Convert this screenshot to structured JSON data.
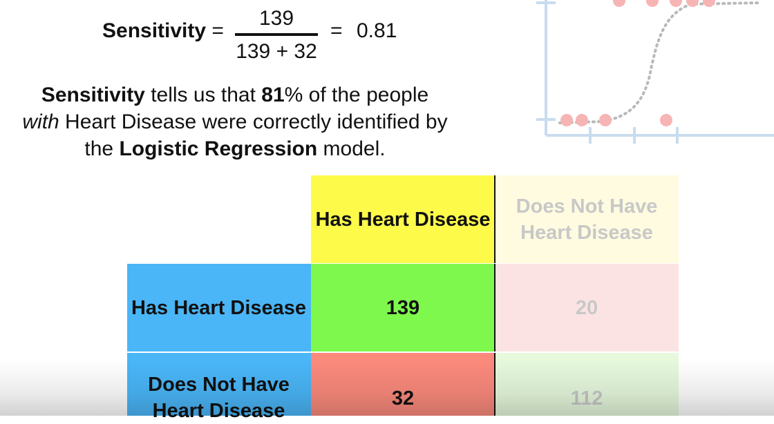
{
  "formula": {
    "term": "Sensitivity",
    "equals": "=",
    "numerator": "139",
    "denominator": "139 + 32",
    "equals2": "=",
    "result": "0.81"
  },
  "explanation": {
    "term": "Sensitivity",
    "text1": " tells us that ",
    "pct": "81",
    "text2": "% of the people",
    "with": "with",
    "text3": " Heart Disease were correctly identified by",
    "text4": "the ",
    "model": "Logistic Regression",
    "text5": " model."
  },
  "table": {
    "col_headers": [
      "Has Heart Disease",
      "Does Not Have Heart Disease"
    ],
    "row_headers": [
      "Has Heart Disease",
      "Does Not Have Heart Disease"
    ],
    "cells": [
      [
        "139",
        "20"
      ],
      [
        "32",
        "112"
      ]
    ]
  },
  "colors": {
    "yellow": "#fdfa4a",
    "yellow_faded": "#fefbe0",
    "blue": "#4ab6f8",
    "green": "#7ef84c",
    "red": "#fb8a7c",
    "pink_faded": "#fce3e3",
    "green_faded": "#e6f9dd",
    "axis": "#c8dcee",
    "dot": "#f7b4b4"
  }
}
